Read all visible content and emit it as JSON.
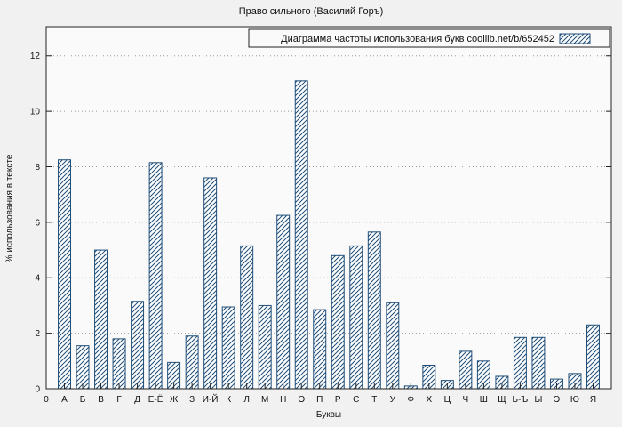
{
  "chart_data": {
    "type": "bar",
    "title": "Право сильного (Василий Горъ)",
    "legend": "Диаграмма частоты использования букв coollib.net/b/652452",
    "xlabel": "Буквы",
    "ylabel": "% использования в тексте",
    "origin_label": "0",
    "yticks": [
      0,
      2,
      4,
      6,
      8,
      10,
      12
    ],
    "ylim": [
      0,
      13.05
    ],
    "grid": "dotted-horizontal",
    "legend_position": "top-right-inside-box",
    "categories": [
      "А",
      "Б",
      "В",
      "Г",
      "Д",
      "Е-Ё",
      "Ж",
      "З",
      "И-Й",
      "К",
      "Л",
      "М",
      "Н",
      "О",
      "П",
      "Р",
      "С",
      "Т",
      "У",
      "Ф",
      "Х",
      "Ц",
      "Ч",
      "Ш",
      "Щ",
      "Ь-Ъ",
      "Ы",
      "Э",
      "Ю",
      "Я"
    ],
    "values": [
      8.25,
      1.55,
      5.0,
      1.8,
      3.15,
      8.15,
      0.95,
      1.9,
      7.6,
      2.95,
      5.15,
      3.0,
      6.25,
      11.1,
      2.85,
      4.8,
      5.15,
      5.65,
      3.1,
      0.1,
      0.85,
      0.3,
      1.35,
      1.0,
      0.45,
      1.85,
      1.85,
      0.35,
      0.55,
      2.3
    ],
    "colors": {
      "bar_stroke": "#1f4e79",
      "bar_fill": "#ffffff",
      "grid": "#9a9a9a",
      "axis": "#222222",
      "plot_bg": "#fafafa",
      "page_bg": "#f1f1f1",
      "text": "#111111"
    }
  }
}
